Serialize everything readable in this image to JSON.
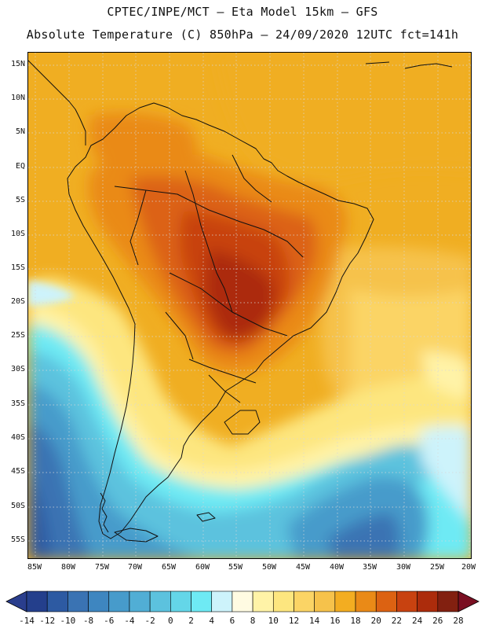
{
  "header": {
    "line1": "CPTEC/INPE/MCT –  Eta Model 15km – GFS",
    "line2": "Absolute Temperature (C) 850hPa – 24/09/2020 12UTC fct=141h"
  },
  "axes": {
    "lat_labels": [
      "15N",
      "10N",
      "5N",
      "EQ",
      "5S",
      "10S",
      "15S",
      "20S",
      "25S",
      "30S",
      "35S",
      "40S",
      "45S",
      "50S",
      "55S"
    ],
    "lon_labels": [
      "85W",
      "80W",
      "75W",
      "70W",
      "65W",
      "60W",
      "55W",
      "50W",
      "45W",
      "40W",
      "35W",
      "30W",
      "25W",
      "20W"
    ]
  },
  "colorbar": {
    "labels": [
      "-14",
      "-12",
      "-10",
      "-8",
      "-6",
      "-4",
      "-2",
      "0",
      "2",
      "4",
      "6",
      "8",
      "10",
      "12",
      "14",
      "16",
      "18",
      "20",
      "22",
      "24",
      "26",
      "28"
    ],
    "colors": [
      "#243f8c",
      "#2d5aa2",
      "#3a73b3",
      "#3e86c0",
      "#479bcb",
      "#51aed5",
      "#5cc2de",
      "#64d6e8",
      "#6eeaf4",
      "#cdf3fb",
      "#fffbe2",
      "#fff3a7",
      "#fde67f",
      "#fbd465",
      "#f6c24b",
      "#f3ad21",
      "#ea8a17",
      "#dc6212",
      "#c84210",
      "#ac2c0c",
      "#822010"
    ],
    "left_arrow_color": "#2a3e8d",
    "right_arrow_color": "#7a0f22"
  }
}
